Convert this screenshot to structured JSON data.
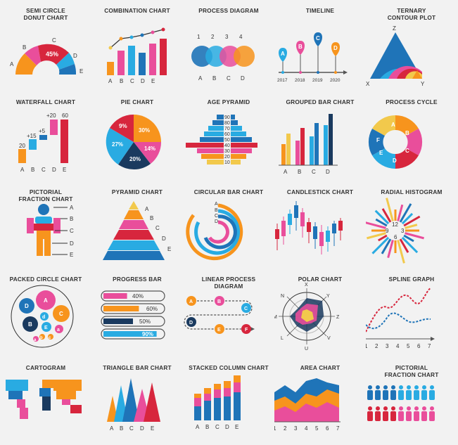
{
  "palette": {
    "orange": "#F7941D",
    "pink": "#E94E9B",
    "blue": "#1F74B8",
    "cyan": "#29ABE2",
    "red": "#D7263D",
    "navy": "#1A3A5F",
    "yellow": "#F2C94C",
    "grey": "#555555"
  },
  "row1": {
    "semi_circle": {
      "title": "SEMI CIRCLE\nDONUT CHART",
      "labels": [
        "A",
        "B",
        "C",
        "D",
        "E"
      ],
      "pct": "45%"
    },
    "combination": {
      "title": "COMBINATION CHART",
      "labels": [
        "A",
        "B",
        "C",
        "D",
        "E"
      ]
    },
    "process_diagram": {
      "title": "PROCESS DIAGRAM",
      "top": [
        "1",
        "2",
        "3",
        "4"
      ],
      "bottom": [
        "A",
        "B",
        "C",
        "D"
      ]
    },
    "timeline": {
      "title": "TIMELINE",
      "pins": [
        "A",
        "B",
        "C",
        "D"
      ],
      "years": [
        "2017",
        "2018",
        "2019",
        "2020"
      ]
    },
    "ternary": {
      "title": "TERNARY\nCONTOUR PLOT",
      "labels": [
        "Z",
        "X",
        "Y"
      ]
    }
  },
  "row2": {
    "waterfall": {
      "title": "WATERFALL CHART",
      "values": [
        "20",
        "+15",
        "+5",
        "+20",
        "60"
      ],
      "labels": [
        "A",
        "B",
        "C",
        "D",
        "E"
      ]
    },
    "pie": {
      "title": "PIE CHART",
      "labels": [
        "9%",
        "30%",
        "14%",
        "20%",
        "27%"
      ]
    },
    "age_pyramid": {
      "title": "AGE PYRAMID",
      "ages": [
        "90",
        "80",
        "70",
        "60",
        "50",
        "40",
        "30",
        "20",
        "10"
      ]
    },
    "grouped_bar": {
      "title": "GROUPED BAR CHART",
      "labels": [
        "A",
        "B",
        "C",
        "D"
      ]
    },
    "process_cycle": {
      "title": "PROCESS CYCLE",
      "labels": [
        "A",
        "B",
        "C",
        "D",
        "E",
        "F"
      ]
    }
  },
  "row3": {
    "pictorial_fraction": {
      "title": "PICTORIAL\nFRACTION CHART",
      "labels": [
        "A",
        "B",
        "C",
        "D",
        "E"
      ]
    },
    "pyramid": {
      "title": "PYRAMID CHART",
      "labels": [
        "A",
        "B",
        "C",
        "D",
        "E"
      ]
    },
    "circular_bar": {
      "title": "CIRCULAR BAR CHART",
      "labels": [
        "A",
        "B",
        "C",
        "D"
      ]
    },
    "candlestick": {
      "title": "CANDLESTICK CHART"
    },
    "radial_histogram": {
      "title": "RADIAL HISTOGRAM",
      "numbers": [
        "12",
        "3",
        "6",
        "9"
      ]
    }
  },
  "row4": {
    "packed_circle": {
      "title": "PACKED CIRCLE CHART",
      "labels": [
        "A",
        "C",
        "D",
        "B",
        "d",
        "E",
        "a",
        "b",
        "a",
        "c"
      ]
    },
    "progress_bar": {
      "title": "PROGRESS BAR",
      "labels": [
        "40%",
        "60%",
        "50%",
        "90%"
      ],
      "fractions": [
        0.4,
        0.6,
        0.5,
        0.9
      ]
    },
    "linear_process": {
      "title": "LINEAR PROCESS\nDIAGRAM",
      "labels": [
        "A",
        "B",
        "C",
        "D",
        "E",
        "F"
      ]
    },
    "polar": {
      "title": "POLAR CHART",
      "labels": [
        "X",
        "Y",
        "Z",
        "V",
        "U",
        "L",
        "M",
        "N"
      ]
    },
    "spline": {
      "title": "SPLINE GRAPH",
      "ticks": [
        "1",
        "2",
        "3",
        "4",
        "5",
        "6",
        "7"
      ]
    }
  },
  "row5": {
    "cartogram": {
      "title": "CARTOGRAM"
    },
    "triangle_bar": {
      "title": "TRIANGLE BAR CHART",
      "labels": [
        "A",
        "B",
        "C",
        "D",
        "E"
      ]
    },
    "stacked_column": {
      "title": "STACKED COLUMN CHART",
      "labels": [
        "A",
        "B",
        "C",
        "D",
        "E"
      ]
    },
    "area": {
      "title": "AREA CHART",
      "ticks": [
        "1",
        "2",
        "3",
        "4",
        "5",
        "6",
        "7"
      ]
    },
    "pictorial_fraction2": {
      "title": "PICTORIAL\nFRACTION CHART"
    }
  }
}
